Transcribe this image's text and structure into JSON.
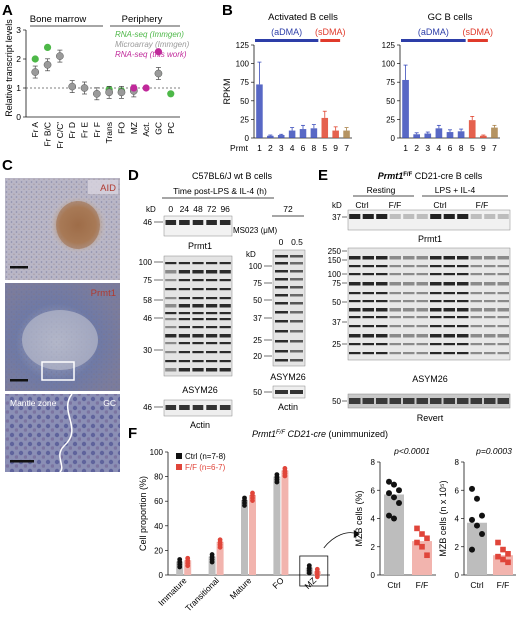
{
  "panels": {
    "A": "A",
    "B": "B",
    "C": "C",
    "D": "D",
    "E": "E",
    "F": "F"
  },
  "panel_a": {
    "ylabel": "Relative transcript levels",
    "groups": {
      "bone_marrow": "Bone marrow",
      "periphery": "Periphery"
    },
    "legend": {
      "rnaseq_immgen": "RNA-seq (Immgen)",
      "microarray_immgen": "Microarray (Immgen)",
      "rnaseq_this": "RNA-seq (this work)"
    },
    "colors": {
      "rnaseq_immgen": "#4db848",
      "microarray_immgen": "#9a9a9a",
      "rnaseq_this": "#c0289a"
    }
  },
  "chart_data": [
    {
      "type": "scatter",
      "panel": "A",
      "categories": [
        "Fr A",
        "Fr B/C",
        "Fr C/C'",
        "Fr D",
        "Fr E",
        "Fr F",
        "Trans",
        "FO",
        "MZ",
        "Act.",
        "GC",
        "PC"
      ],
      "ylim": [
        0,
        3
      ],
      "yticks": [
        0,
        1,
        2,
        3
      ],
      "reference_line": 1,
      "series": [
        {
          "name": "RNA-seq (Immgen)",
          "color": "#4db848",
          "values": [
            2.0,
            2.4,
            null,
            null,
            null,
            null,
            0.95,
            0.9,
            0.95,
            null,
            1.5,
            0.8
          ]
        },
        {
          "name": "Microarray (Immgen)",
          "color": "#9a9a9a",
          "values": [
            1.55,
            1.8,
            2.1,
            1.05,
            1.0,
            0.8,
            0.85,
            0.85,
            0.9,
            null,
            1.5,
            null
          ]
        },
        {
          "name": "RNA-seq (this work)",
          "color": "#c0289a",
          "values": [
            null,
            null,
            null,
            null,
            null,
            null,
            null,
            null,
            1.0,
            1.0,
            2.25,
            null
          ]
        }
      ]
    },
    {
      "type": "bar",
      "panel": "B",
      "title": "Activated B cells",
      "ylabel": "RPKM",
      "xprefix": "Prmt",
      "categories": [
        "1",
        "2",
        "3",
        "4",
        "6",
        "8",
        "5",
        "9",
        "7"
      ],
      "values": [
        72,
        3,
        4,
        10,
        12,
        13,
        27,
        10,
        10
      ],
      "errors": [
        30,
        1,
        1,
        4,
        5,
        5,
        9,
        5,
        4
      ],
      "ylim": [
        0,
        125
      ],
      "yticks": [
        0,
        25,
        50,
        75,
        100,
        125
      ],
      "brackets": [
        {
          "label": "(aDMA)",
          "from": 0,
          "to": 5,
          "color": "#2d3ea8"
        },
        {
          "label": "(sDMA)",
          "from": 6,
          "to": 7,
          "color": "#e03a2b"
        }
      ],
      "colors": [
        "#3b4dbb",
        "#3b4dbb",
        "#3b4dbb",
        "#3b4dbb",
        "#3b4dbb",
        "#3b4dbb",
        "#e0452f",
        "#e0452f",
        "#a88148"
      ]
    },
    {
      "type": "bar",
      "panel": "B",
      "title": "GC B cells",
      "ylabel": "",
      "categories": [
        "1",
        "2",
        "3",
        "4",
        "6",
        "8",
        "5",
        "9",
        "7"
      ],
      "values": [
        78,
        5,
        6,
        13,
        8,
        9,
        24,
        3,
        14
      ],
      "errors": [
        20,
        2,
        2,
        4,
        3,
        3,
        5,
        1,
        3
      ],
      "ylim": [
        0,
        125
      ],
      "yticks": [
        0,
        25,
        50,
        75,
        100,
        125
      ],
      "brackets": [
        {
          "label": "(aDMA)",
          "from": 0,
          "to": 5,
          "color": "#2d3ea8"
        },
        {
          "label": "(sDMA)",
          "from": 6,
          "to": 7,
          "color": "#e03a2b"
        }
      ],
      "colors": [
        "#3b4dbb",
        "#3b4dbb",
        "#3b4dbb",
        "#3b4dbb",
        "#3b4dbb",
        "#3b4dbb",
        "#e0452f",
        "#e0452f",
        "#a88148"
      ]
    },
    {
      "type": "bar",
      "panel": "F",
      "title": "Prmt1F/F CD21-cre (unimmunized)",
      "ylabel": "Cell proportion (%)",
      "categories": [
        "Immature",
        "Transitional",
        "Mature",
        "FO",
        "MZ"
      ],
      "series": [
        {
          "name": "Ctrl (n=7-8)",
          "values": [
            11,
            15,
            61,
            80,
            6
          ]
        },
        {
          "name": "F/F (n=6-7)",
          "values": [
            12,
            27,
            65,
            85,
            3
          ]
        }
      ],
      "ylim": [
        0,
        100
      ],
      "yticks": [
        0,
        20,
        40,
        60,
        80,
        100
      ]
    },
    {
      "type": "bar",
      "panel": "F",
      "ylabel": "MZB cells (%)",
      "categories": [
        "Ctrl",
        "F/F"
      ],
      "values": [
        5.7,
        2.4
      ],
      "points": [
        [
          6.6,
          6.4,
          6.0,
          5.8,
          5.5,
          5.1,
          4.2,
          4.0
        ],
        [
          3.3,
          2.9,
          2.6,
          2.3,
          2.0,
          1.4
        ]
      ],
      "annotation": "p<0.0001",
      "ylim": [
        0,
        8
      ],
      "yticks": [
        0,
        2,
        4,
        6,
        8
      ]
    },
    {
      "type": "bar",
      "panel": "F",
      "ylabel": "MZB cells (n x 10⁵)",
      "categories": [
        "Ctrl",
        "F/F"
      ],
      "values": [
        3.7,
        1.4
      ],
      "points": [
        [
          6.1,
          5.4,
          4.2,
          3.9,
          3.5,
          2.9,
          1.8
        ],
        [
          2.3,
          1.8,
          1.5,
          1.3,
          1.1,
          0.9
        ]
      ],
      "annotation": "p=0.0003",
      "ylim": [
        0,
        8
      ],
      "yticks": [
        0,
        2,
        4,
        6,
        8
      ]
    }
  ],
  "panel_c": {
    "labels": [
      "AID",
      "Prmt1",
      "Mantle zone",
      "GC"
    ]
  },
  "panel_d": {
    "title": "C57BL6/J wt B cells",
    "subtitle": "Time post-LPS & IL-4 (h)",
    "times": [
      "0",
      "24",
      "48",
      "72",
      "96"
    ],
    "kd_label": "kD",
    "markers_top": [
      "46"
    ],
    "markers_mid": [
      "100",
      "75",
      "58",
      "46",
      "30"
    ],
    "markers_bottom": [
      "46"
    ],
    "blot_labels": [
      "Prmt1",
      "ASYM26",
      "Actin"
    ],
    "ms023": {
      "time": "72",
      "label": "MS023 (μM)",
      "doses": [
        "0",
        "0.5"
      ],
      "markers": [
        "100",
        "75",
        "50",
        "37",
        "25",
        "20"
      ],
      "actin_marker": "50",
      "blot_labels": [
        "ASYM26",
        "Actin"
      ]
    }
  },
  "panel_e": {
    "title_gene": "Prmt1",
    "title_sup": "F/F",
    "title_rest": " CD21-cre B cells",
    "conditions": [
      "Resting",
      "LPS + IL-4"
    ],
    "genotypes": [
      "Ctrl",
      "F/F",
      "Ctrl",
      "F/F"
    ],
    "kd_label": "kD",
    "markers_top": [
      "37"
    ],
    "markers_mid": [
      "250",
      "150",
      "100",
      "75",
      "50",
      "37",
      "25"
    ],
    "markers_bottom": [
      "50"
    ],
    "blot_labels": [
      "Prmt1",
      "ASYM26",
      "Revert"
    ]
  },
  "panel_f": {
    "title_gene": "Prmt1",
    "title_sup": "F/F",
    "title_cre": " CD21-cre",
    "title_rest": " (unimmunized)",
    "legend": [
      "Ctrl (n=7-8)",
      "F/F (n=6-7)"
    ],
    "colors": {
      "ctrl": "#111111",
      "ctrl_bar": "#bdbdbd",
      "ff": "#e0453a",
      "ff_bar": "#f2b4ae"
    }
  }
}
